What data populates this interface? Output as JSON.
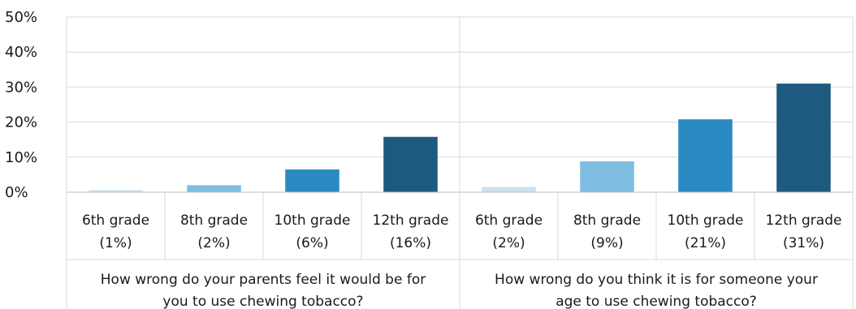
{
  "chart_data": {
    "type": "bar",
    "yticks": [
      "0%",
      "10%",
      "20%",
      "30%",
      "40%",
      "50%"
    ],
    "ylim": [
      0,
      50
    ],
    "grid": true,
    "groups": [
      {
        "label_lines": [
          "How wrong do your parents feel it would be for",
          "you to use chewing tobacco?"
        ],
        "bars": [
          {
            "line1": "6th grade",
            "line2": "(1%)",
            "value": 0.6,
            "color": "#cce1ee"
          },
          {
            "line1": "8th grade",
            "line2": "(2%)",
            "value": 2,
            "color": "#7fbde3"
          },
          {
            "line1": "10th grade",
            "line2": "(6%)",
            "value": 6.5,
            "color": "#2c8ac2"
          },
          {
            "line1": "12th grade",
            "line2": "(16%)",
            "value": 15.8,
            "color": "#1e5a7f"
          }
        ]
      },
      {
        "label_lines": [
          "How wrong do you think it is for someone your",
          "age to use chewing tobacco?"
        ],
        "bars": [
          {
            "line1": "6th grade",
            "line2": "(2%)",
            "value": 1.5,
            "color": "#cce1ee"
          },
          {
            "line1": "8th grade",
            "line2": "(9%)",
            "value": 8.8,
            "color": "#7fbde3"
          },
          {
            "line1": "10th grade",
            "line2": "(21%)",
            "value": 20.8,
            "color": "#2c8ac2"
          },
          {
            "line1": "12th grade",
            "line2": "(31%)",
            "value": 31,
            "color": "#1e5a7f"
          }
        ]
      }
    ]
  }
}
